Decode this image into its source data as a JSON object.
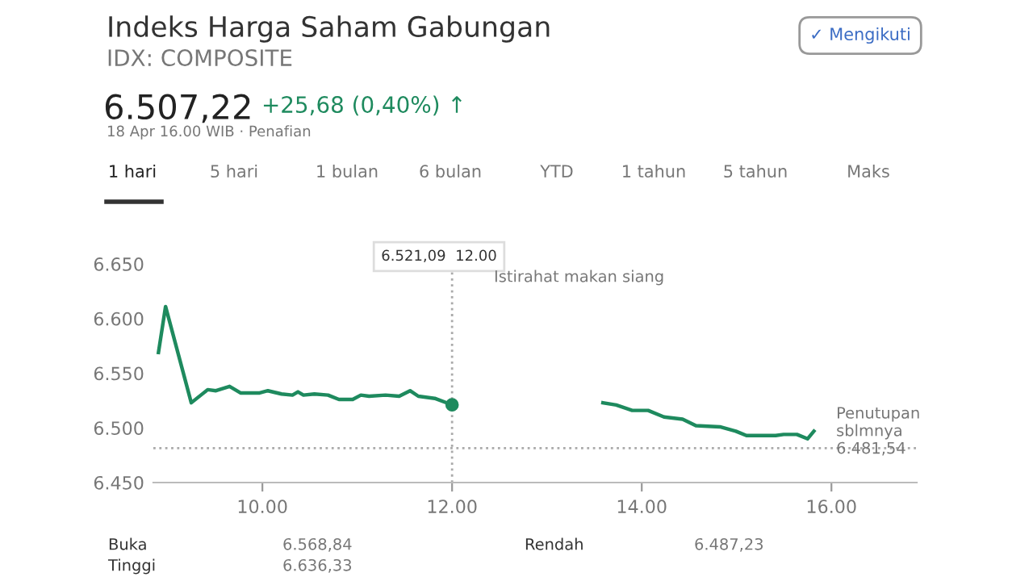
{
  "chart_data": {
    "type": "line",
    "title": "Indeks Harga Saham Gabungan",
    "subtitle": "IDX: COMPOSITE",
    "annotations": [
      "6.507,22",
      "+25,68 (0,40%) ↑",
      "18 Apr 16.00 WIB · Penafian",
      "✓ Mengikuti",
      "1 hari",
      "5 hari",
      "1 bulan",
      "6 bulan",
      "YTD",
      "1 tahun",
      "5 tahun",
      "Maks",
      "Buka",
      "6.568,84",
      "Tinggi",
      "6.636,33",
      "Rendah",
      "6.487,23",
      "6.521,09  12.00",
      "Istirahat makan siang"
    ],
    "series": [
      {
        "color": "#1e8a5e",
        "x": [
          8.904,
          8.979,
          9.25,
          9.423,
          9.51,
          9.654,
          9.769,
          9.971,
          10.058,
          10.202,
          10.317,
          10.375,
          10.433,
          10.548,
          10.692,
          10.807,
          10.952,
          11.038,
          11.125,
          11.298,
          11.442,
          11.557,
          11.644,
          11.817,
          12.0
        ],
        "values": [
          6569,
          6611,
          6523,
          6535,
          6534,
          6538,
          6532,
          6532,
          6534,
          6531,
          6530,
          6533,
          6530,
          6531,
          6530,
          6526,
          6526,
          6530,
          6529,
          6530,
          6529,
          6534,
          6529,
          6527,
          6521.09
        ]
      },
      {
        "color": "#1e8a5e",
        "x": [
          13.591,
          13.731,
          13.899,
          14.067,
          14.235,
          14.431,
          14.571,
          14.824,
          14.992,
          15.104,
          15.412,
          15.496,
          15.636,
          15.748,
          15.815
        ],
        "values": [
          6523,
          6521,
          6516,
          6516,
          6510,
          6508,
          6502,
          6501,
          6497,
          6493,
          6493,
          6494,
          6494,
          6490,
          6497
        ]
      }
    ],
    "xlim": [
      8.85,
      16.9
    ],
    "ylim": [
      6450,
      6670
    ],
    "xticks": [
      {
        "value": 10,
        "label": "10.00"
      },
      {
        "value": 12,
        "label": "12.00"
      },
      {
        "value": 14,
        "label": "14.00"
      },
      {
        "value": 16,
        "label": "16.00"
      }
    ],
    "yticks": [
      {
        "value": 6450,
        "label": "6.450"
      },
      {
        "value": 6500,
        "label": "6.500"
      },
      {
        "value": 6550,
        "label": "6.550"
      },
      {
        "value": 6600,
        "label": "6.600"
      },
      {
        "value": 6650,
        "label": "6.650"
      }
    ],
    "ref_lines": [
      {
        "axis": "y",
        "value": 6481.54,
        "label": "Penutupan sblmnya 6.481,54",
        "color": "#aaaaaa",
        "line_style": "dotted"
      },
      {
        "axis": "x",
        "value": 12,
        "color": "#aaaaaa",
        "line_style": "dotted"
      }
    ],
    "grid": false,
    "legend": false,
    "marker": "none",
    "line_style": "solid"
  }
}
